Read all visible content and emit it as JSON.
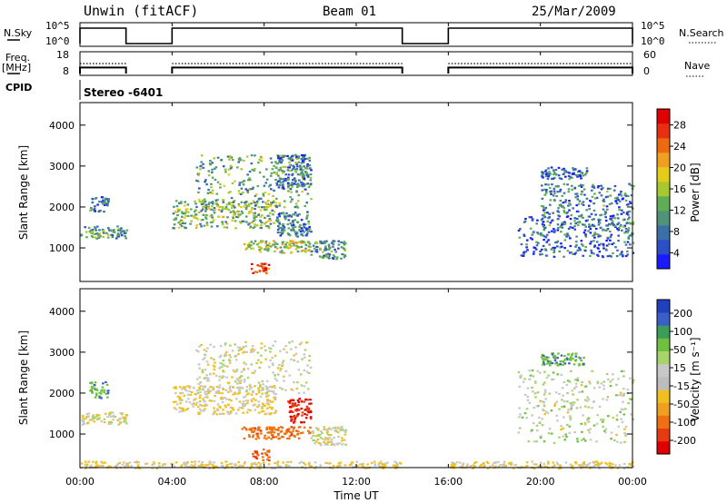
{
  "header": {
    "site": "Unwin (fitACF)",
    "beam": "Beam 01",
    "date": "25/Mar/2009"
  },
  "panel_labels": {
    "nsky": "N.Sky",
    "nsearch": "N.Search",
    "freq_line1": "Freq.",
    "freq_line2": "[MHz]",
    "nave": "Nave",
    "cpid": "CPID",
    "cpid_value": "Stereo -6401"
  },
  "colors": {
    "power_scale": [
      "#1a1aff",
      "#2c4fc8",
      "#3b6fa8",
      "#4f9478",
      "#5fae55",
      "#a8c830",
      "#e6cc1a",
      "#f0a020",
      "#ee6a10",
      "#e83010",
      "#e00000"
    ],
    "velocity_scale": [
      "#2040c0",
      "#3a60c8",
      "#3c9c5a",
      "#70c040",
      "#a6d46a",
      "#c8c8c8",
      "#bdbdbd",
      "#f0c020",
      "#f0a020",
      "#ee7010",
      "#e83a10",
      "#e00000"
    ]
  },
  "chart_data": [
    {
      "type": "line",
      "name": "noise-sky-search",
      "left_ticks": [
        "10^5",
        "10^0"
      ],
      "right_ticks": [
        "10^5",
        "10^0"
      ],
      "xlim": [
        "00:00",
        "24:00"
      ],
      "data_gaps": [
        [
          "02:00",
          "04:00"
        ],
        [
          "14:00",
          "16:00"
        ]
      ]
    },
    {
      "type": "line",
      "name": "frequency-nave",
      "left_ticks": [
        "18",
        "8"
      ],
      "right_ticks": [
        "60",
        "0"
      ],
      "frequency_level": 11,
      "nave_level": 30,
      "data_gaps": [
        [
          "02:00",
          "04:00"
        ],
        [
          "14:00",
          "16:00"
        ]
      ]
    },
    {
      "type": "heatmap",
      "name": "power",
      "ylabel": "Slant Range [km]",
      "ylim": [
        180,
        4550
      ],
      "yticks": [
        "4000",
        "3000",
        "2000",
        "1000"
      ],
      "colorbar_label": "Power [dB]",
      "colorbar_ticks": [
        "28",
        "24",
        "20",
        "16",
        "12",
        "8",
        "4"
      ],
      "colorbar_range": [
        0,
        32
      ],
      "echo_regions": [
        {
          "t": [
            0.0,
            2.0
          ],
          "range": [
            1250,
            1550
          ],
          "level": 10
        },
        {
          "t": [
            0.4,
            1.2
          ],
          "range": [
            1900,
            2300
          ],
          "level": 6
        },
        {
          "t": [
            4.0,
            8.5
          ],
          "range": [
            1500,
            2200
          ],
          "level": 14
        },
        {
          "t": [
            5.0,
            10.0
          ],
          "range": [
            2000,
            3300
          ],
          "level": 12
        },
        {
          "t": [
            8.5,
            10.0
          ],
          "range": [
            2500,
            3300
          ],
          "level": 8
        },
        {
          "t": [
            7.0,
            10.0
          ],
          "range": [
            900,
            1200
          ],
          "level": 16
        },
        {
          "t": [
            10.0,
            11.5
          ],
          "range": [
            750,
            1200
          ],
          "level": 10
        },
        {
          "t": [
            7.4,
            8.2
          ],
          "range": [
            380,
            650
          ],
          "level": 28
        },
        {
          "t": [
            8.5,
            10.0
          ],
          "range": [
            1300,
            1900
          ],
          "level": 8
        },
        {
          "t": [
            19.0,
            24.0
          ],
          "range": [
            800,
            1800
          ],
          "level": 6
        },
        {
          "t": [
            20.0,
            24.0
          ],
          "range": [
            1500,
            2600
          ],
          "level": 8
        },
        {
          "t": [
            20.0,
            22.0
          ],
          "range": [
            2700,
            3000
          ],
          "level": 6
        }
      ]
    },
    {
      "type": "heatmap",
      "name": "velocity",
      "ylabel": "Slant Range [km]",
      "ylim": [
        180,
        4550
      ],
      "yticks": [
        "4000",
        "3000",
        "2000",
        "1000"
      ],
      "colorbar_label": "Velocity [m s⁻¹]",
      "colorbar_ticks": [
        "200",
        "100",
        "50",
        "15",
        "-15",
        "-50",
        "-100",
        "-200"
      ],
      "echo_regions": [
        {
          "t": [
            0.0,
            2.0
          ],
          "range": [
            1250,
            1550
          ],
          "velocity": 0
        },
        {
          "t": [
            0.4,
            1.2
          ],
          "range": [
            1900,
            2300
          ],
          "velocity": 60
        },
        {
          "t": [
            4.0,
            8.5
          ],
          "range": [
            1500,
            2200
          ],
          "velocity": -20
        },
        {
          "t": [
            5.0,
            10.0
          ],
          "range": [
            2000,
            3300
          ],
          "velocity": 0
        },
        {
          "t": [
            9.0,
            10.0
          ],
          "range": [
            1300,
            1900
          ],
          "velocity": -150
        },
        {
          "t": [
            7.0,
            10.0
          ],
          "range": [
            900,
            1200
          ],
          "velocity": -80
        },
        {
          "t": [
            7.4,
            8.2
          ],
          "range": [
            380,
            650
          ],
          "velocity": -90
        },
        {
          "t": [
            10.0,
            11.5
          ],
          "range": [
            750,
            1200
          ],
          "velocity": 0
        },
        {
          "t": [
            0.0,
            14.0
          ],
          "range": [
            180,
            350
          ],
          "velocity": -20
        },
        {
          "t": [
            16.0,
            24.0
          ],
          "range": [
            180,
            350
          ],
          "velocity": -20
        },
        {
          "t": [
            19.0,
            24.0
          ],
          "range": [
            800,
            2600
          ],
          "velocity": 10
        },
        {
          "t": [
            20.0,
            22.0
          ],
          "range": [
            2700,
            3000
          ],
          "velocity": 60
        }
      ]
    }
  ],
  "x_axis": {
    "ticks": [
      "00:00",
      "04:00",
      "08:00",
      "12:00",
      "16:00",
      "20:00",
      "00:00"
    ],
    "label": "Time UT"
  }
}
